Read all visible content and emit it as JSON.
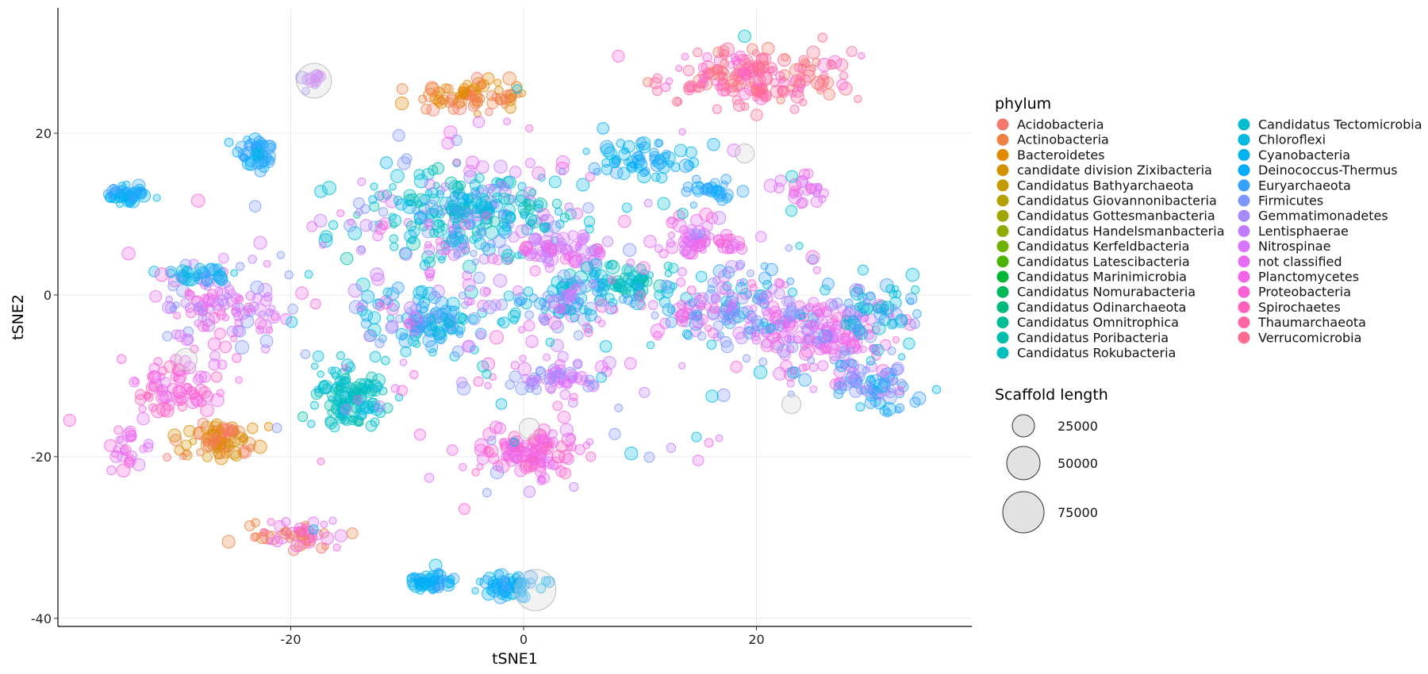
{
  "chart_data": {
    "type": "scatter",
    "xlabel": "tSNE1",
    "ylabel": "tSNE2",
    "xlim": [
      -40,
      38.5
    ],
    "ylim": [
      -41,
      35.5
    ],
    "x_ticks": [
      -20,
      0,
      20
    ],
    "y_ticks": [
      -40,
      -20,
      0,
      20
    ],
    "x_tick_labels": [
      "-20",
      "0",
      "20"
    ],
    "y_tick_labels": [
      "-40",
      "-20",
      "0",
      "20"
    ],
    "grid": true,
    "legend_placement": "right",
    "phylum_legend": {
      "title": "phylum",
      "entries": [
        {
          "label": "Acidobacteria",
          "color": "#F8766D"
        },
        {
          "label": "Actinobacteria",
          "color": "#EE8044"
        },
        {
          "label": "Bacteroidetes",
          "color": "#E18A00"
        },
        {
          "label": "candidate division Zixibacteria",
          "color": "#D39200"
        },
        {
          "label": "Candidatus Bathyarchaeota",
          "color": "#C49A00"
        },
        {
          "label": "Candidatus Giovannonibacteria",
          "color": "#B3A000"
        },
        {
          "label": "Candidatus Gottesmanbacteria",
          "color": "#A0A600"
        },
        {
          "label": "Candidatus Handelsmanbacteria",
          "color": "#8BAB00"
        },
        {
          "label": "Candidatus Kerfeldbacteria",
          "color": "#70B000"
        },
        {
          "label": "Candidatus Latescibacteria",
          "color": "#4BB300"
        },
        {
          "label": "Candidatus Marinimicrobia",
          "color": "#00B635"
        },
        {
          "label": "Candidatus Nomurabacteria",
          "color": "#00B85C"
        },
        {
          "label": "Candidatus Odinarchaeota",
          "color": "#00BA7A"
        },
        {
          "label": "Candidatus Omnitrophica",
          "color": "#00BC94"
        },
        {
          "label": "Candidatus Poribacteria",
          "color": "#00BEAA"
        },
        {
          "label": "Candidatus Rokubacteria",
          "color": "#00BFBE"
        },
        {
          "label": "Candidatus Tectomicrobia",
          "color": "#00BDD0"
        },
        {
          "label": "Chloroflexi",
          "color": "#00BAE0"
        },
        {
          "label": "Cyanobacteria",
          "color": "#00B4EF"
        },
        {
          "label": "Deinococcus-Thermus",
          "color": "#00ACFC"
        },
        {
          "label": "Euryarchaeota",
          "color": "#35A2FF"
        },
        {
          "label": "Firmicutes",
          "color": "#7F96FF"
        },
        {
          "label": "Gemmatimonadetes",
          "color": "#A58AFF"
        },
        {
          "label": "Lentisphaerae",
          "color": "#C07CFF"
        },
        {
          "label": "Nitrospinae",
          "color": "#D874FD"
        },
        {
          "label": "not classified",
          "color": "#E76BF3"
        },
        {
          "label": "Planctomycetes",
          "color": "#F365E6"
        },
        {
          "label": "Proteobacteria",
          "color": "#FC61D5"
        },
        {
          "label": "Spirochaetes",
          "color": "#FF62BC"
        },
        {
          "label": "Thaumarchaeota",
          "color": "#FF67A4"
        },
        {
          "label": "Verrucomicrobia",
          "color": "#FF6C90"
        }
      ]
    },
    "size_legend": {
      "title": "Scaffold length",
      "entries": [
        {
          "label": "25000",
          "value": 25000
        },
        {
          "label": "50000",
          "value": 50000
        },
        {
          "label": "75000",
          "value": 75000
        }
      ]
    },
    "clusters": [
      {
        "x": -34,
        "y": 12.5,
        "sx": 1.2,
        "sy": 0.9,
        "n": 45,
        "colors": [
          "#35A2FF",
          "#00ACFC",
          "#00B4EF"
        ]
      },
      {
        "x": -23,
        "y": 17.5,
        "sx": 1.2,
        "sy": 1.6,
        "n": 45,
        "colors": [
          "#35A2FF",
          "#00ACFC"
        ]
      },
      {
        "x": -18,
        "y": 26.5,
        "sx": 0.8,
        "sy": 0.8,
        "n": 14,
        "colors": [
          "#C07CFF",
          "#D874FD",
          "#A58AFF"
        ]
      },
      {
        "x": -4.5,
        "y": 24.5,
        "sx": 3.2,
        "sy": 1.3,
        "n": 75,
        "colors": [
          "#EE8044",
          "#E18A00",
          "#F8766D"
        ]
      },
      {
        "x": 20,
        "y": 27,
        "sx": 5.5,
        "sy": 2.3,
        "n": 180,
        "colors": [
          "#FF67A4",
          "#FF6C90",
          "#FC61D5",
          "#F8766D"
        ]
      },
      {
        "x": 10,
        "y": 17,
        "sx": 2.8,
        "sy": 1.6,
        "n": 60,
        "colors": [
          "#00B4EF",
          "#00ACFC",
          "#35A2FF"
        ]
      },
      {
        "x": 16,
        "y": 13,
        "sx": 1.3,
        "sy": 1.2,
        "n": 25,
        "colors": [
          "#35A2FF",
          "#00ACFC"
        ]
      },
      {
        "x": -5,
        "y": 10,
        "sx": 6.5,
        "sy": 3.8,
        "n": 260,
        "colors": [
          "#00BAE0",
          "#00BDD0",
          "#00BFBE",
          "#00B4EF",
          "#00BEAA",
          "#7F96FF",
          "#D874FD"
        ]
      },
      {
        "x": 3.5,
        "y": 5.5,
        "sx": 3.0,
        "sy": 1.5,
        "n": 60,
        "colors": [
          "#E76BF3",
          "#D874FD",
          "#C07CFF",
          "#FC61D5"
        ]
      },
      {
        "x": 8,
        "y": 1.5,
        "sx": 3.0,
        "sy": 1.8,
        "n": 70,
        "colors": [
          "#00BFBE",
          "#00BDD0",
          "#00BAE0",
          "#00BEAA"
        ]
      },
      {
        "x": -8,
        "y": -3,
        "sx": 3.5,
        "sy": 2.3,
        "n": 110,
        "colors": [
          "#00BAE0",
          "#00BDD0",
          "#00B4EF",
          "#7F96FF",
          "#35A2FF"
        ]
      },
      {
        "x": 3,
        "y": -1,
        "sx": 3.2,
        "sy": 1.8,
        "n": 60,
        "colors": [
          "#7F96FF",
          "#35A2FF",
          "#00BAE0",
          "#D874FD"
        ]
      },
      {
        "x": -15,
        "y": -12.5,
        "sx": 2.0,
        "sy": 2.6,
        "n": 110,
        "colors": [
          "#00BFBE",
          "#00BDD0",
          "#00BAE0",
          "#00BEAA"
        ]
      },
      {
        "x": -26,
        "y": -1.5,
        "sx": 3.5,
        "sy": 2.8,
        "n": 110,
        "colors": [
          "#D874FD",
          "#E76BF3",
          "#7F96FF",
          "#C07CFF",
          "#FC61D5"
        ]
      },
      {
        "x": -28,
        "y": 2.5,
        "sx": 2.5,
        "sy": 0.8,
        "n": 30,
        "colors": [
          "#00BAE0",
          "#35A2FF",
          "#00B4EF"
        ]
      },
      {
        "x": -30,
        "y": -11,
        "sx": 3.0,
        "sy": 2.2,
        "n": 70,
        "colors": [
          "#FC61D5",
          "#E76BF3",
          "#F365E6",
          "#FF62BC"
        ]
      },
      {
        "x": -34,
        "y": -19,
        "sx": 1.2,
        "sy": 2.5,
        "n": 25,
        "colors": [
          "#E76BF3",
          "#FC61D5",
          "#D874FD"
        ]
      },
      {
        "x": -26,
        "y": -18,
        "sx": 2.3,
        "sy": 1.6,
        "n": 80,
        "colors": [
          "#EE8044",
          "#E18A00",
          "#D39200",
          "#F8766D"
        ]
      },
      {
        "x": -19.5,
        "y": -29.5,
        "sx": 3.0,
        "sy": 1.2,
        "n": 55,
        "colors": [
          "#EE8044",
          "#FC61D5",
          "#E76BF3",
          "#F8766D"
        ]
      },
      {
        "x": 0.5,
        "y": -19.5,
        "sx": 3.0,
        "sy": 2.0,
        "n": 110,
        "colors": [
          "#FC61D5",
          "#F365E6",
          "#E76BF3",
          "#FF62BC"
        ]
      },
      {
        "x": 3.5,
        "y": -10.5,
        "sx": 2.6,
        "sy": 1.5,
        "n": 55,
        "colors": [
          "#D874FD",
          "#C07CFF",
          "#E76BF3",
          "#7F96FF"
        ]
      },
      {
        "x": -8,
        "y": -35.5,
        "sx": 1.4,
        "sy": 0.9,
        "n": 45,
        "colors": [
          "#35A2FF",
          "#00ACFC",
          "#00B4EF"
        ]
      },
      {
        "x": -1,
        "y": -36,
        "sx": 1.9,
        "sy": 0.9,
        "n": 55,
        "colors": [
          "#35A2FF",
          "#00ACFC",
          "#00B4EF"
        ]
      },
      {
        "x": 15,
        "y": 6.5,
        "sx": 3.0,
        "sy": 1.8,
        "n": 60,
        "colors": [
          "#F365E6",
          "#FC61D5",
          "#E76BF3",
          "#D874FD"
        ]
      },
      {
        "x": 18,
        "y": -2,
        "sx": 5.0,
        "sy": 3.0,
        "n": 180,
        "colors": [
          "#7F96FF",
          "#D874FD",
          "#C07CFF",
          "#35A2FF",
          "#E76BF3",
          "#00BAE0",
          "#FC61D5"
        ]
      },
      {
        "x": 26,
        "y": -5,
        "sx": 4.0,
        "sy": 3.0,
        "n": 150,
        "colors": [
          "#FC61D5",
          "#E76BF3",
          "#D874FD",
          "#F365E6",
          "#7F96FF"
        ]
      },
      {
        "x": 30,
        "y": -11,
        "sx": 2.8,
        "sy": 1.8,
        "n": 70,
        "colors": [
          "#35A2FF",
          "#7F96FF",
          "#00B4EF",
          "#C07CFF"
        ]
      },
      {
        "x": 30.5,
        "y": -2,
        "sx": 2.5,
        "sy": 2.6,
        "n": 60,
        "colors": [
          "#00BAE0",
          "#35A2FF",
          "#7F96FF",
          "#00BDD0"
        ]
      },
      {
        "x": 24,
        "y": 13,
        "sx": 1.5,
        "sy": 1.3,
        "n": 25,
        "colors": [
          "#FC61D5",
          "#E76BF3",
          "#D874FD"
        ]
      },
      {
        "x": 0,
        "y": 0,
        "sx": 17.0,
        "sy": 14.0,
        "n": 260,
        "colors": [
          "#C07CFF",
          "#E76BF3",
          "#00BAE0",
          "#D874FD",
          "#7F96FF",
          "#FC61D5",
          "#00BDD0",
          "#F365E6"
        ]
      }
    ]
  }
}
